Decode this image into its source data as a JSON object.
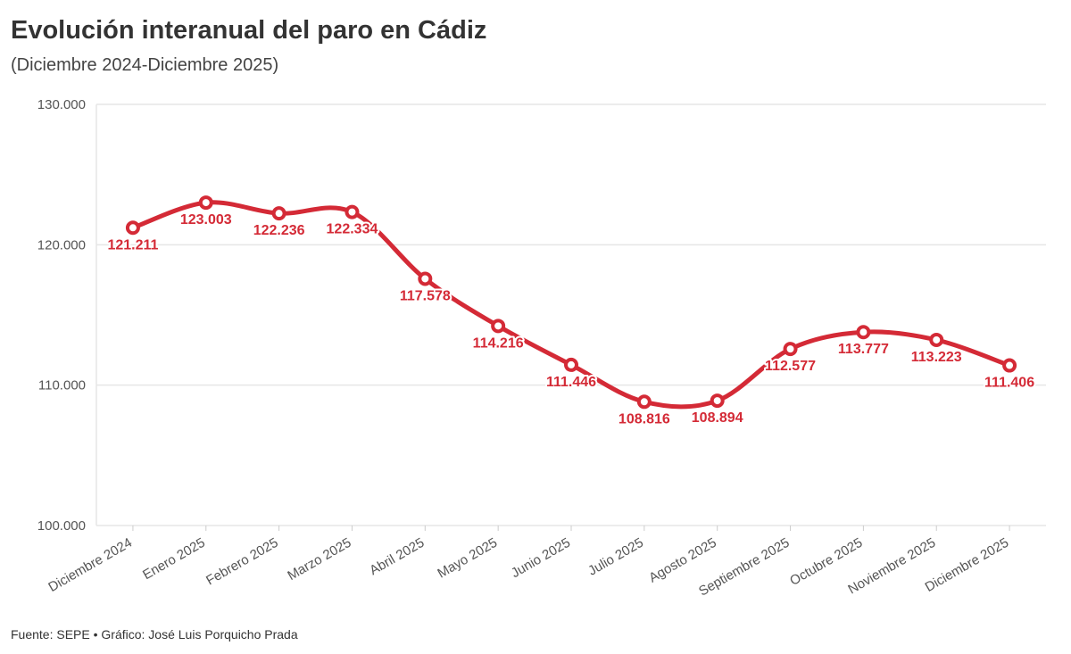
{
  "chart_data": {
    "type": "line",
    "title": "Evolución interanual del paro en Cádiz",
    "subtitle": "(Diciembre 2024-Diciembre 2025)",
    "caption": "Fuente: SEPE • Gráfico: José Luis Porquicho Prada",
    "categories": [
      "Diciembre 2024",
      "Enero 2025",
      "Febrero 2025",
      "Marzo 2025",
      "Abril 2025",
      "Mayo 2025",
      "Junio 2025",
      "Julio 2025",
      "Agosto 2025",
      "Septiembre 2025",
      "Octubre 2025",
      "Noviembre 2025",
      "Diciembre 2025"
    ],
    "series": [
      {
        "name": "Paro",
        "color": "#d42a36",
        "values": [
          121211,
          123003,
          122236,
          122334,
          117578,
          114216,
          111446,
          108816,
          108894,
          112577,
          113777,
          113223,
          111406
        ],
        "value_labels": [
          "121.211",
          "123.003",
          "122.236",
          "122.334",
          "117.578",
          "114.216",
          "111.446",
          "108.816",
          "108.894",
          "112.577",
          "113.777",
          "113.223",
          "111.406"
        ]
      }
    ],
    "ylim": [
      100000,
      130000
    ],
    "yticks": [
      {
        "value": 100000,
        "label": "100.000"
      },
      {
        "value": 110000,
        "label": "110.000"
      },
      {
        "value": 120000,
        "label": "120.000"
      },
      {
        "value": 130000,
        "label": "130.000"
      }
    ],
    "grid": true
  }
}
